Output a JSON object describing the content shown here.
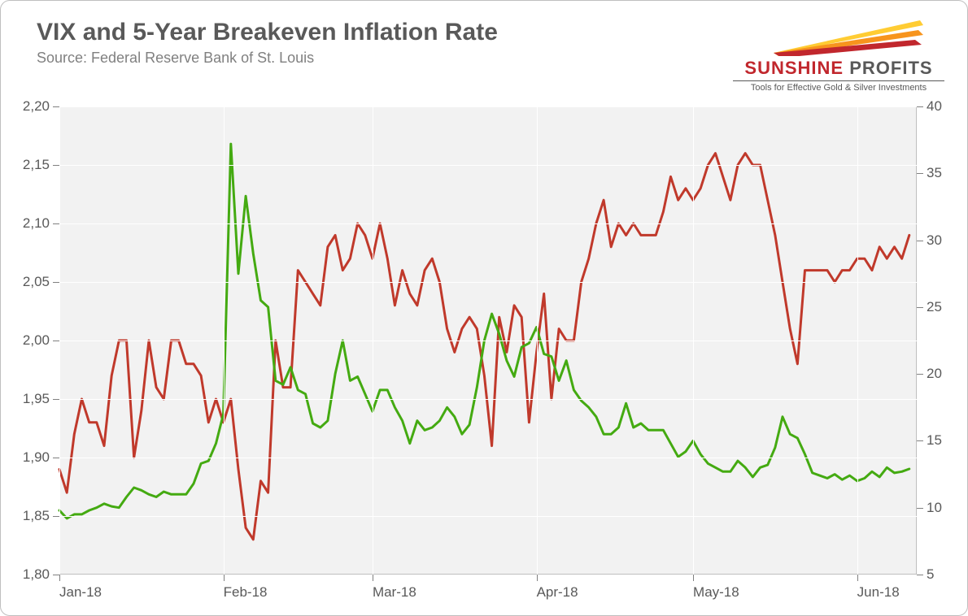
{
  "title": "VIX and 5-Year Breakeven Inflation Rate",
  "source": "Source: Federal Reserve Bank of St. Louis",
  "logo": {
    "main_text": "SUNSHINE PROFITS",
    "sub_text": "Tools for Effective Gold & Silver Investments",
    "sunshine_color": "#c1272d",
    "profits_color": "#595959",
    "ray_colors": [
      "#c1272d",
      "#f7941d",
      "#ffcc33"
    ]
  },
  "chart": {
    "type": "line-dual-axis",
    "background_color": "#f2f2f2",
    "grid_color": "#ffffff",
    "border_color": "#bfbfbf",
    "tick_font_size": 17,
    "tick_color": "#595959",
    "x_domain": [
      0,
      115
    ],
    "x_ticks": [
      {
        "pos": 0,
        "label": "Jan-18"
      },
      {
        "pos": 22,
        "label": "Feb-18"
      },
      {
        "pos": 42,
        "label": "Mar-18"
      },
      {
        "pos": 64,
        "label": "Apr-18"
      },
      {
        "pos": 85,
        "label": "May-18"
      },
      {
        "pos": 107,
        "label": "Jun-18"
      }
    ],
    "x_gridlines": [
      0,
      22,
      42,
      64,
      85,
      107
    ],
    "axis_left": {
      "min": 1.8,
      "max": 2.2,
      "ticks": [
        1.8,
        1.85,
        1.9,
        1.95,
        2.0,
        2.05,
        2.1,
        2.15,
        2.2
      ],
      "decimal_sep": ","
    },
    "axis_right": {
      "min": 5,
      "max": 40,
      "ticks": [
        5,
        10,
        15,
        20,
        25,
        30,
        35,
        40
      ]
    },
    "series": [
      {
        "name": "breakeven_5y",
        "axis": "left",
        "color": "#c0392b",
        "line_width": 3,
        "data": [
          [
            0,
            1.89
          ],
          [
            1,
            1.87
          ],
          [
            2,
            1.92
          ],
          [
            3,
            1.95
          ],
          [
            4,
            1.93
          ],
          [
            5,
            1.93
          ],
          [
            6,
            1.91
          ],
          [
            7,
            1.97
          ],
          [
            8,
            2.0
          ],
          [
            9,
            2.0
          ],
          [
            10,
            1.9
          ],
          [
            11,
            1.94
          ],
          [
            12,
            2.0
          ],
          [
            13,
            1.96
          ],
          [
            14,
            1.95
          ],
          [
            15,
            2.0
          ],
          [
            16,
            2.0
          ],
          [
            17,
            1.98
          ],
          [
            18,
            1.98
          ],
          [
            19,
            1.97
          ],
          [
            20,
            1.93
          ],
          [
            21,
            1.95
          ],
          [
            22,
            1.93
          ],
          [
            23,
            1.95
          ],
          [
            24,
            1.89
          ],
          [
            25,
            1.84
          ],
          [
            26,
            1.83
          ],
          [
            27,
            1.88
          ],
          [
            28,
            1.87
          ],
          [
            29,
            2.0
          ],
          [
            30,
            1.96
          ],
          [
            31,
            1.96
          ],
          [
            32,
            2.06
          ],
          [
            33,
            2.05
          ],
          [
            34,
            2.04
          ],
          [
            35,
            2.03
          ],
          [
            36,
            2.08
          ],
          [
            37,
            2.09
          ],
          [
            38,
            2.06
          ],
          [
            39,
            2.07
          ],
          [
            40,
            2.1
          ],
          [
            41,
            2.09
          ],
          [
            42,
            2.07
          ],
          [
            43,
            2.1
          ],
          [
            44,
            2.07
          ],
          [
            45,
            2.03
          ],
          [
            46,
            2.06
          ],
          [
            47,
            2.04
          ],
          [
            48,
            2.03
          ],
          [
            49,
            2.06
          ],
          [
            50,
            2.07
          ],
          [
            51,
            2.05
          ],
          [
            52,
            2.01
          ],
          [
            53,
            1.99
          ],
          [
            54,
            2.01
          ],
          [
            55,
            2.02
          ],
          [
            56,
            2.01
          ],
          [
            57,
            1.97
          ],
          [
            58,
            1.91
          ],
          [
            59,
            2.02
          ],
          [
            60,
            1.99
          ],
          [
            61,
            2.03
          ],
          [
            62,
            2.02
          ],
          [
            63,
            1.93
          ],
          [
            64,
            1.99
          ],
          [
            65,
            2.04
          ],
          [
            66,
            1.95
          ],
          [
            67,
            2.01
          ],
          [
            68,
            2.0
          ],
          [
            69,
            2.0
          ],
          [
            70,
            2.05
          ],
          [
            71,
            2.07
          ],
          [
            72,
            2.1
          ],
          [
            73,
            2.12
          ],
          [
            74,
            2.08
          ],
          [
            75,
            2.1
          ],
          [
            76,
            2.09
          ],
          [
            77,
            2.1
          ],
          [
            78,
            2.09
          ],
          [
            79,
            2.09
          ],
          [
            80,
            2.09
          ],
          [
            81,
            2.11
          ],
          [
            82,
            2.14
          ],
          [
            83,
            2.12
          ],
          [
            84,
            2.13
          ],
          [
            85,
            2.12
          ],
          [
            86,
            2.13
          ],
          [
            87,
            2.15
          ],
          [
            88,
            2.16
          ],
          [
            89,
            2.14
          ],
          [
            90,
            2.12
          ],
          [
            91,
            2.15
          ],
          [
            92,
            2.16
          ],
          [
            93,
            2.15
          ],
          [
            94,
            2.15
          ],
          [
            95,
            2.12
          ],
          [
            96,
            2.09
          ],
          [
            97,
            2.05
          ],
          [
            98,
            2.01
          ],
          [
            99,
            1.98
          ],
          [
            100,
            2.06
          ],
          [
            101,
            2.06
          ],
          [
            102,
            2.06
          ],
          [
            103,
            2.06
          ],
          [
            104,
            2.05
          ],
          [
            105,
            2.06
          ],
          [
            106,
            2.06
          ],
          [
            107,
            2.07
          ],
          [
            108,
            2.07
          ],
          [
            109,
            2.06
          ],
          [
            110,
            2.08
          ],
          [
            111,
            2.07
          ],
          [
            112,
            2.08
          ],
          [
            113,
            2.07
          ],
          [
            114,
            2.09
          ]
        ]
      },
      {
        "name": "vix",
        "axis": "right",
        "color": "#44aa11",
        "line_width": 3,
        "data": [
          [
            0,
            9.8
          ],
          [
            1,
            9.2
          ],
          [
            2,
            9.5
          ],
          [
            3,
            9.5
          ],
          [
            4,
            9.8
          ],
          [
            5,
            10.0
          ],
          [
            6,
            10.3
          ],
          [
            7,
            10.1
          ],
          [
            8,
            10.0
          ],
          [
            9,
            10.8
          ],
          [
            10,
            11.5
          ],
          [
            11,
            11.3
          ],
          [
            12,
            11.0
          ],
          [
            13,
            10.8
          ],
          [
            14,
            11.2
          ],
          [
            15,
            11.0
          ],
          [
            16,
            11.0
          ],
          [
            17,
            11.0
          ],
          [
            18,
            11.8
          ],
          [
            19,
            13.3
          ],
          [
            20,
            13.5
          ],
          [
            21,
            14.8
          ],
          [
            22,
            17.0
          ],
          [
            23,
            37.2
          ],
          [
            24,
            27.5
          ],
          [
            25,
            33.3
          ],
          [
            26,
            29.0
          ],
          [
            27,
            25.5
          ],
          [
            28,
            25.0
          ],
          [
            29,
            19.5
          ],
          [
            30,
            19.2
          ],
          [
            31,
            20.5
          ],
          [
            32,
            18.8
          ],
          [
            33,
            18.5
          ],
          [
            34,
            16.3
          ],
          [
            35,
            16.0
          ],
          [
            36,
            16.5
          ],
          [
            37,
            20.0
          ],
          [
            38,
            22.5
          ],
          [
            39,
            19.5
          ],
          [
            40,
            19.8
          ],
          [
            41,
            18.5
          ],
          [
            42,
            17.2
          ],
          [
            43,
            18.8
          ],
          [
            44,
            18.8
          ],
          [
            45,
            17.5
          ],
          [
            46,
            16.5
          ],
          [
            47,
            14.8
          ],
          [
            48,
            16.5
          ],
          [
            49,
            15.8
          ],
          [
            50,
            16.0
          ],
          [
            51,
            16.5
          ],
          [
            52,
            17.5
          ],
          [
            53,
            16.8
          ],
          [
            54,
            15.5
          ],
          [
            55,
            16.2
          ],
          [
            56,
            19.0
          ],
          [
            57,
            22.5
          ],
          [
            58,
            24.5
          ],
          [
            59,
            23.0
          ],
          [
            60,
            21.0
          ],
          [
            61,
            19.8
          ],
          [
            62,
            22.0
          ],
          [
            63,
            22.3
          ],
          [
            64,
            23.5
          ],
          [
            65,
            21.5
          ],
          [
            66,
            21.3
          ],
          [
            67,
            19.5
          ],
          [
            68,
            21.0
          ],
          [
            69,
            18.8
          ],
          [
            70,
            18.0
          ],
          [
            71,
            17.5
          ],
          [
            72,
            16.8
          ],
          [
            73,
            15.5
          ],
          [
            74,
            15.5
          ],
          [
            75,
            16.0
          ],
          [
            76,
            17.8
          ],
          [
            77,
            16.0
          ],
          [
            78,
            16.3
          ],
          [
            79,
            15.8
          ],
          [
            80,
            15.8
          ],
          [
            81,
            15.8
          ],
          [
            82,
            14.8
          ],
          [
            83,
            13.8
          ],
          [
            84,
            14.2
          ],
          [
            85,
            15.0
          ],
          [
            86,
            14.0
          ],
          [
            87,
            13.3
          ],
          [
            88,
            13.0
          ],
          [
            89,
            12.7
          ],
          [
            90,
            12.7
          ],
          [
            91,
            13.5
          ],
          [
            92,
            13.0
          ],
          [
            93,
            12.3
          ],
          [
            94,
            13.0
          ],
          [
            95,
            13.2
          ],
          [
            96,
            14.5
          ],
          [
            97,
            16.8
          ],
          [
            98,
            15.5
          ],
          [
            99,
            15.2
          ],
          [
            100,
            14.0
          ],
          [
            101,
            12.6
          ],
          [
            102,
            12.4
          ],
          [
            103,
            12.2
          ],
          [
            104,
            12.5
          ],
          [
            105,
            12.1
          ],
          [
            106,
            12.4
          ],
          [
            107,
            12.0
          ],
          [
            108,
            12.2
          ],
          [
            109,
            12.7
          ],
          [
            110,
            12.3
          ],
          [
            111,
            13.0
          ],
          [
            112,
            12.6
          ],
          [
            113,
            12.7
          ],
          [
            114,
            12.9
          ]
        ]
      }
    ]
  }
}
